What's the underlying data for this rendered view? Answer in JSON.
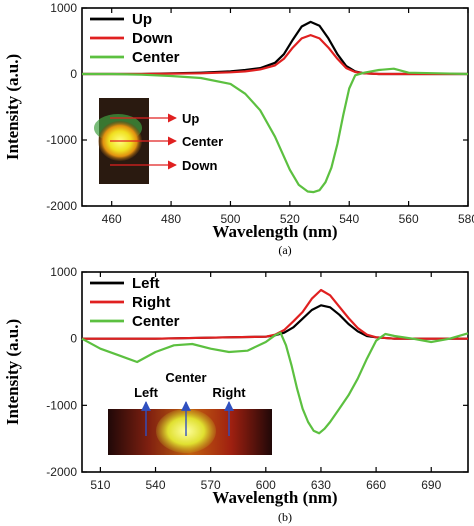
{
  "chart_data": [
    {
      "type": "line",
      "caption": "(a)",
      "xlabel": "Wavelength (nm)",
      "ylabel": "Intensity (a.u.)",
      "xlim": [
        450,
        580
      ],
      "ylim": [
        -2000,
        1000
      ],
      "xticks": [
        460,
        480,
        500,
        520,
        540,
        560,
        580
      ],
      "yticks": [
        1000,
        0,
        -1000,
        -2000
      ],
      "legend_position": "top-left",
      "series": [
        {
          "name": "Up",
          "color": "#000000",
          "x": [
            450,
            470,
            490,
            500,
            505,
            510,
            515,
            518,
            521,
            524,
            527,
            530,
            533,
            536,
            539,
            542,
            545,
            550,
            560,
            570,
            580
          ],
          "y": [
            0,
            0,
            20,
            40,
            60,
            90,
            170,
            300,
            520,
            720,
            790,
            730,
            540,
            300,
            120,
            40,
            10,
            0,
            0,
            0,
            0
          ]
        },
        {
          "name": "Down",
          "color": "#e02020",
          "x": [
            450,
            470,
            490,
            500,
            505,
            510,
            515,
            518,
            521,
            524,
            527,
            530,
            533,
            536,
            539,
            542,
            545,
            550,
            560,
            570,
            580
          ],
          "y": [
            0,
            0,
            10,
            25,
            40,
            70,
            130,
            230,
            400,
            540,
            590,
            540,
            400,
            230,
            90,
            30,
            10,
            0,
            0,
            0,
            0
          ]
        },
        {
          "name": "Center",
          "color": "#5cc040",
          "x": [
            450,
            460,
            470,
            480,
            490,
            500,
            505,
            510,
            515,
            520,
            523,
            526,
            528,
            530,
            532,
            534,
            536,
            538,
            540,
            542,
            545,
            550,
            555,
            560,
            570,
            580
          ],
          "y": [
            0,
            0,
            -10,
            -30,
            -60,
            -150,
            -300,
            -550,
            -950,
            -1450,
            -1680,
            -1780,
            -1790,
            -1760,
            -1640,
            -1420,
            -1060,
            -620,
            -220,
            -20,
            20,
            60,
            80,
            20,
            10,
            0
          ]
        }
      ]
    },
    {
      "type": "line",
      "caption": "(b)",
      "xlabel": "Wavelength (nm)",
      "ylabel": "Intensity (a.u.)",
      "xlim": [
        500,
        710
      ],
      "ylim": [
        -2000,
        1000
      ],
      "xticks": [
        510,
        540,
        570,
        600,
        630,
        660,
        690
      ],
      "yticks": [
        1000,
        0,
        -1000,
        -2000
      ],
      "legend_position": "top-left",
      "series": [
        {
          "name": "Left",
          "color": "#000000",
          "x": [
            500,
            540,
            580,
            600,
            605,
            610,
            615,
            620,
            625,
            630,
            635,
            640,
            645,
            650,
            655,
            660,
            670,
            690,
            710
          ],
          "y": [
            0,
            0,
            20,
            30,
            50,
            90,
            170,
            300,
            430,
            500,
            470,
            360,
            220,
            110,
            40,
            20,
            0,
            0,
            0
          ]
        },
        {
          "name": "Right",
          "color": "#e02020",
          "x": [
            500,
            540,
            580,
            600,
            605,
            610,
            615,
            620,
            625,
            630,
            635,
            640,
            645,
            650,
            655,
            660,
            670,
            690,
            710
          ],
          "y": [
            0,
            0,
            20,
            30,
            60,
            130,
            260,
            400,
            600,
            730,
            650,
            480,
            310,
            160,
            60,
            20,
            0,
            0,
            0
          ]
        },
        {
          "name": "Center",
          "color": "#5cc040",
          "x": [
            500,
            510,
            520,
            530,
            540,
            550,
            560,
            570,
            580,
            590,
            600,
            605,
            608,
            611,
            614,
            617,
            620,
            623,
            626,
            629,
            632,
            635,
            640,
            645,
            650,
            655,
            660,
            665,
            670,
            680,
            690,
            700,
            710
          ],
          "y": [
            0,
            -150,
            -250,
            -350,
            -200,
            -100,
            -80,
            -150,
            -200,
            -180,
            -50,
            50,
            90,
            -100,
            -400,
            -750,
            -1050,
            -1250,
            -1380,
            -1420,
            -1350,
            -1250,
            -1050,
            -850,
            -600,
            -300,
            -30,
            70,
            40,
            0,
            -50,
            0,
            80
          ]
        }
      ]
    }
  ],
  "insets": [
    {
      "labels": [
        "Up",
        "Center",
        "Down"
      ]
    },
    {
      "labels": [
        "Left",
        "Center",
        "Right"
      ]
    }
  ],
  "colors": {
    "axis": "#000000",
    "arrow_a": "#e02020",
    "arrow_b": "#3050c0"
  }
}
